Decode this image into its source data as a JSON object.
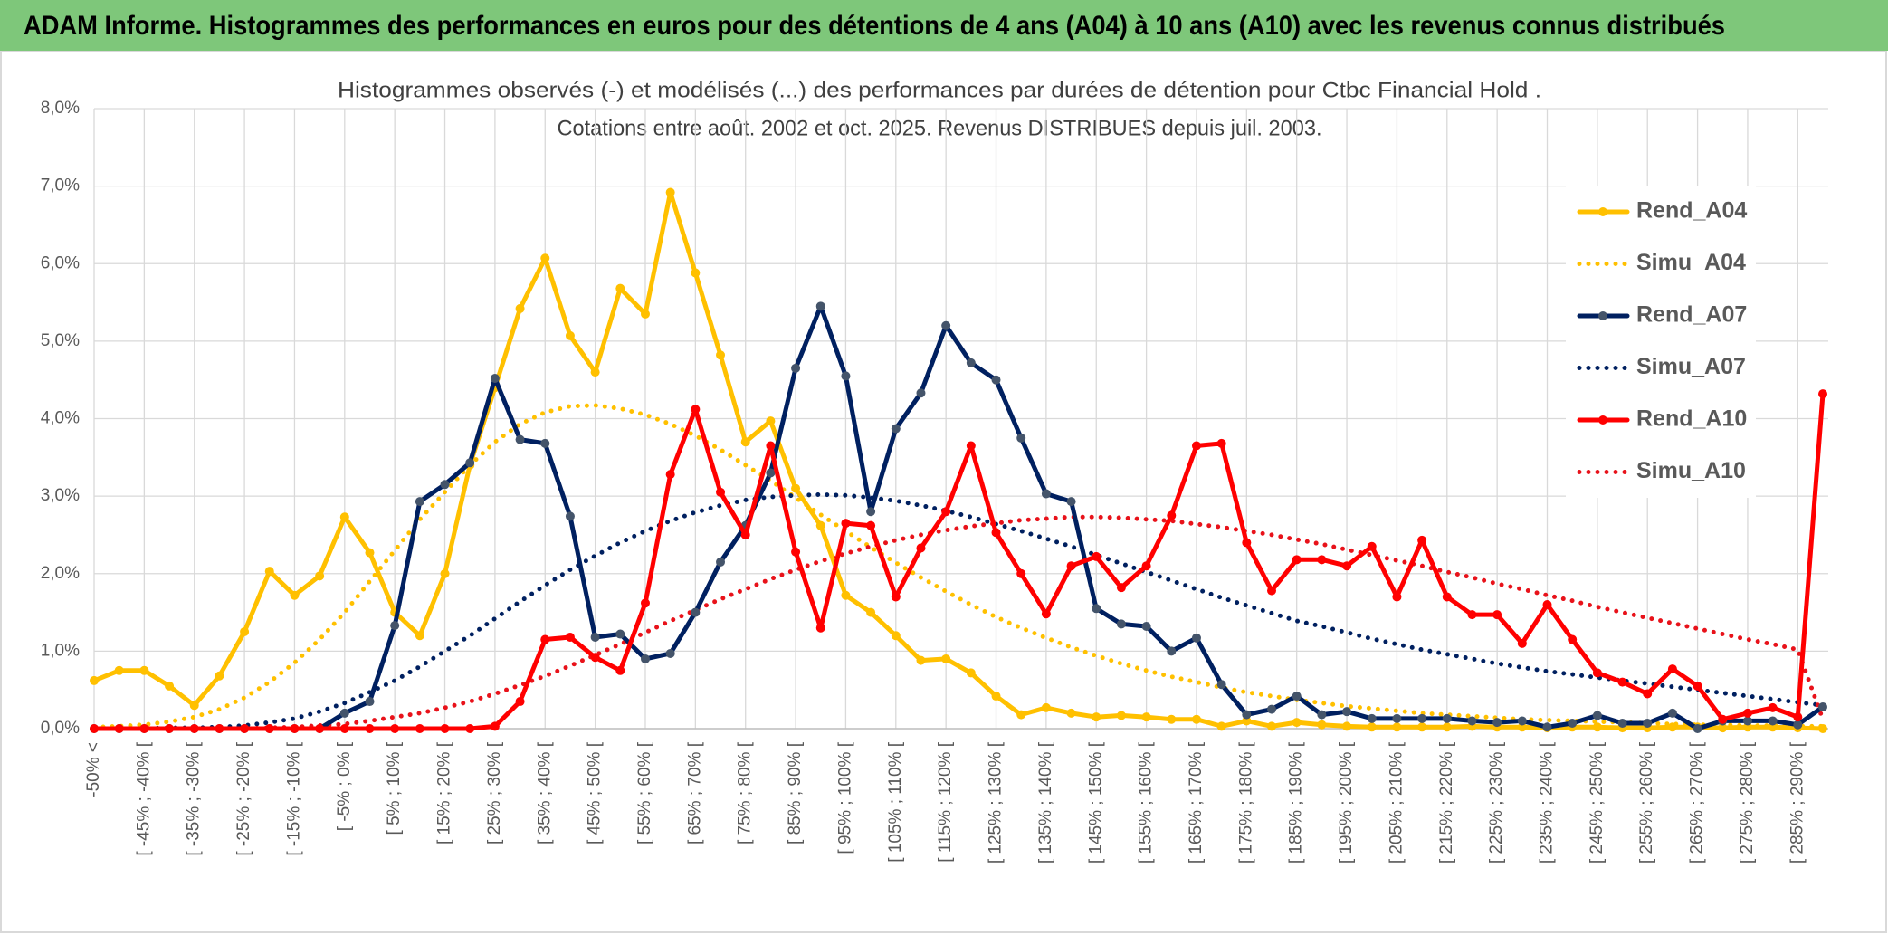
{
  "header": {
    "title": "ADAM Informe. Histogrammes des performances en euros pour des détentions de 4 ans (A04) à 10 ans (A10) avec les revenus connus distribués"
  },
  "chart_data": {
    "type": "line",
    "title": "Histogrammes observés (-) et modélisés (...) des performances par durées de détention pour Ctbc Financial Hold .",
    "subtitle": "Cotations entre août. 2002 et oct. 2025. Revenus DISTRIBUES depuis juil. 2003.",
    "categories": [
      "-50% <",
      null,
      "[ -45% ; -40% [",
      null,
      "[ -35% ; -30% [",
      null,
      "[ -25% ; -20% [",
      null,
      "[ -15% ; -10% [",
      null,
      "[ -5% ; 0% [",
      null,
      "[ 5% ; 10% [",
      null,
      "[ 15% ; 20% [",
      null,
      "[ 25% ; 30% [",
      null,
      "[ 35% ; 40% [",
      null,
      "[ 45% ; 50% [",
      null,
      "[ 55% ; 60% [",
      null,
      "[ 65% ; 70% [",
      null,
      "[ 75% ; 80% [",
      null,
      "[ 85% ; 90% [",
      null,
      "[ 95% ; 100% [",
      null,
      "[ 105% ; 110% [",
      null,
      "[ 115% ; 120% [",
      null,
      "[ 125% ; 130% [",
      null,
      "[ 135% ; 140% [",
      null,
      "[ 145% ; 150% [",
      null,
      "[ 155% ; 160% [",
      null,
      "[ 165% ; 170% [",
      null,
      "[ 175% ; 180% [",
      null,
      "[ 185% ; 190% [",
      null,
      "[ 195% ; 200% [",
      null,
      "[ 205% ; 210% [",
      null,
      "[ 215% ; 220% [",
      null,
      "[ 225% ; 230% [",
      null,
      "[ 235% ; 240% [",
      null,
      "[ 245% ; 250% [",
      null,
      "[ 255% ; 260% [",
      null,
      "[ 265% ; 270% [",
      null,
      "[ 275% ; 280% [",
      null,
      "[ 285% ; 290% [",
      null
    ],
    "ylim": [
      0,
      8
    ],
    "yticks": [
      {
        "value": 0,
        "label": "0,0%"
      },
      {
        "value": 1,
        "label": "1,0%"
      },
      {
        "value": 2,
        "label": "2,0%"
      },
      {
        "value": 3,
        "label": "3,0%"
      },
      {
        "value": 4,
        "label": "4,0%"
      },
      {
        "value": 5,
        "label": "5,0%"
      },
      {
        "value": 6,
        "label": "6,0%"
      },
      {
        "value": 7,
        "label": "7,0%"
      },
      {
        "value": 8,
        "label": "8,0%"
      }
    ],
    "grid": true,
    "legend": "right",
    "series": [
      {
        "name": "Rend_A04",
        "color": "#ffc000",
        "style": "solid",
        "marker": true,
        "values": [
          0.62,
          0.75,
          0.75,
          0.55,
          0.3,
          0.68,
          1.25,
          2.03,
          1.72,
          1.97,
          2.73,
          2.27,
          1.5,
          1.2,
          2.0,
          3.4,
          4.4,
          5.42,
          6.07,
          5.07,
          4.6,
          5.68,
          5.35,
          6.92,
          5.88,
          4.82,
          3.7,
          3.97,
          3.1,
          2.62,
          1.72,
          1.5,
          1.2,
          0.88,
          0.9,
          0.72,
          0.42,
          0.18,
          0.27,
          0.2,
          0.15,
          0.17,
          0.15,
          0.12,
          0.12,
          0.03,
          0.1,
          0.03,
          0.08,
          0.05,
          0.03,
          0.02,
          0.02,
          0.02,
          0.02,
          0.03,
          0.02,
          0.02,
          0.01,
          0.02,
          0.02,
          0.01,
          0.01,
          0.02,
          0.02,
          0.01,
          0.02,
          0.02,
          0.01,
          0.0
        ]
      },
      {
        "name": "Simu_A04",
        "color": "#ffc000",
        "style": "dotted",
        "marker": false,
        "values": [
          0.02,
          0.03,
          0.05,
          0.09,
          0.15,
          0.25,
          0.4,
          0.6,
          0.85,
          1.15,
          1.5,
          1.9,
          2.3,
          2.7,
          3.05,
          3.4,
          3.7,
          3.93,
          4.08,
          4.16,
          4.17,
          4.13,
          4.05,
          3.93,
          3.78,
          3.6,
          3.4,
          3.2,
          2.98,
          2.76,
          2.55,
          2.34,
          2.14,
          1.95,
          1.77,
          1.6,
          1.44,
          1.3,
          1.17,
          1.05,
          0.94,
          0.84,
          0.75,
          0.67,
          0.6,
          0.53,
          0.47,
          0.42,
          0.37,
          0.33,
          0.29,
          0.26,
          0.23,
          0.2,
          0.18,
          0.16,
          0.14,
          0.12,
          0.11,
          0.1,
          0.09,
          0.08,
          0.07,
          0.06,
          0.05,
          0.05,
          0.04,
          0.04,
          0.03,
          0.03
        ]
      },
      {
        "name": "Rend_A07",
        "color": "#002060",
        "marker_color": "#44546a",
        "style": "solid",
        "marker": true,
        "values": [
          0,
          0,
          0,
          0,
          0,
          0,
          0,
          0,
          0,
          0,
          0.2,
          0.35,
          1.33,
          2.93,
          3.15,
          3.43,
          4.52,
          3.73,
          3.68,
          2.74,
          1.18,
          1.22,
          0.9,
          0.97,
          1.5,
          2.15,
          2.62,
          3.3,
          4.65,
          5.45,
          4.55,
          2.8,
          3.87,
          4.33,
          5.2,
          4.72,
          4.5,
          3.75,
          3.03,
          2.93,
          1.55,
          1.35,
          1.32,
          1.0,
          1.17,
          0.57,
          0.18,
          0.25,
          0.42,
          0.18,
          0.22,
          0.13,
          0.13,
          0.13,
          0.13,
          0.1,
          0.08,
          0.1,
          0.02,
          0.07,
          0.17,
          0.07,
          0.07,
          0.2,
          0.0,
          0.1,
          0.1,
          0.1,
          0.05,
          0.28
        ]
      },
      {
        "name": "Simu_A07",
        "color": "#002060",
        "style": "dotted",
        "marker": false,
        "values": [
          0,
          0,
          0,
          0.01,
          0.01,
          0.02,
          0.04,
          0.08,
          0.13,
          0.22,
          0.33,
          0.47,
          0.62,
          0.8,
          1.0,
          1.2,
          1.42,
          1.64,
          1.85,
          2.05,
          2.23,
          2.4,
          2.55,
          2.68,
          2.79,
          2.88,
          2.95,
          2.99,
          3.01,
          3.02,
          3.01,
          2.98,
          2.94,
          2.88,
          2.81,
          2.73,
          2.64,
          2.55,
          2.45,
          2.35,
          2.24,
          2.13,
          2.02,
          1.91,
          1.8,
          1.69,
          1.59,
          1.49,
          1.39,
          1.32,
          1.24,
          1.16,
          1.09,
          1.02,
          0.96,
          0.9,
          0.84,
          0.79,
          0.74,
          0.7,
          0.66,
          0.62,
          0.58,
          0.54,
          0.5,
          0.46,
          0.42,
          0.38,
          0.34,
          0.3
        ]
      },
      {
        "name": "Rend_A10",
        "color": "#ff0000",
        "style": "solid",
        "marker": true,
        "values": [
          0,
          0,
          0,
          0,
          0,
          0,
          0,
          0,
          0,
          0,
          0,
          0,
          0,
          0,
          0,
          0,
          0.03,
          0.35,
          1.15,
          1.18,
          0.92,
          0.75,
          1.62,
          3.28,
          4.12,
          3.05,
          2.5,
          3.65,
          2.28,
          1.3,
          2.65,
          2.62,
          1.7,
          2.33,
          2.8,
          3.65,
          2.53,
          2.0,
          1.48,
          2.1,
          2.22,
          1.82,
          2.1,
          2.75,
          3.65,
          3.68,
          2.4,
          1.78,
          2.18,
          2.18,
          2.1,
          2.35,
          1.7,
          2.43,
          1.7,
          1.47,
          1.47,
          1.1,
          1.6,
          1.15,
          0.72,
          0.6,
          0.45,
          0.77,
          0.55,
          0.12,
          0.2,
          0.27,
          0.15,
          4.32
        ]
      },
      {
        "name": "Simu_A10",
        "color": "#e8121a",
        "style": "dotted",
        "marker": false,
        "values": [
          0,
          0,
          0,
          0,
          0,
          0,
          0,
          0.01,
          0.02,
          0.04,
          0.06,
          0.1,
          0.15,
          0.2,
          0.27,
          0.35,
          0.45,
          0.56,
          0.68,
          0.81,
          0.95,
          1.09,
          1.24,
          1.39,
          1.53,
          1.67,
          1.8,
          1.93,
          2.05,
          2.16,
          2.26,
          2.35,
          2.43,
          2.5,
          2.56,
          2.61,
          2.65,
          2.69,
          2.71,
          2.73,
          2.73,
          2.72,
          2.7,
          2.68,
          2.64,
          2.6,
          2.55,
          2.5,
          2.44,
          2.38,
          2.31,
          2.24,
          2.17,
          2.1,
          2.02,
          1.95,
          1.87,
          1.8,
          1.72,
          1.65,
          1.57,
          1.5,
          1.43,
          1.36,
          1.29,
          1.22,
          1.15,
          1.09,
          1.02,
          0.12
        ]
      }
    ]
  }
}
